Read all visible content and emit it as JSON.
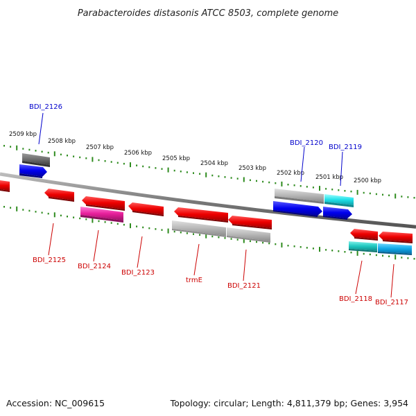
{
  "title": "Parabacteroides distasonis ATCC 8503, complete genome",
  "footer": {
    "accession": "Accession: NC_009615",
    "summary": "Topology: circular; Length: 4,811,379 bp; Genes: 3,954"
  },
  "colors": {
    "backbone": "#888888",
    "tick": "#2e8b1e",
    "forward_label": "#0000cc",
    "reverse_label": "#cc0000"
  },
  "scale_labels": [
    "2509 kbp",
    "2508 kbp",
    "2507 kbp",
    "2506 kbp",
    "2505 kbp",
    "2504 kbp",
    "2503 kbp",
    "2502 kbp",
    "2501 kbp",
    "2500 kbp"
  ],
  "genes": [
    {
      "label": "BDI_2126",
      "strand": "forward"
    },
    {
      "label": "BDI_2120",
      "strand": "forward"
    },
    {
      "label": "BDI_2119",
      "strand": "forward"
    },
    {
      "label": "BDI_2125",
      "strand": "reverse"
    },
    {
      "label": "BDI_2124",
      "strand": "reverse"
    },
    {
      "label": "BDI_2123",
      "strand": "reverse"
    },
    {
      "label": "trmE",
      "strand": "reverse"
    },
    {
      "label": "BDI_2121",
      "strand": "reverse"
    },
    {
      "label": "BDI_2118",
      "strand": "reverse"
    },
    {
      "label": "BDI_2117",
      "strand": "reverse"
    }
  ]
}
